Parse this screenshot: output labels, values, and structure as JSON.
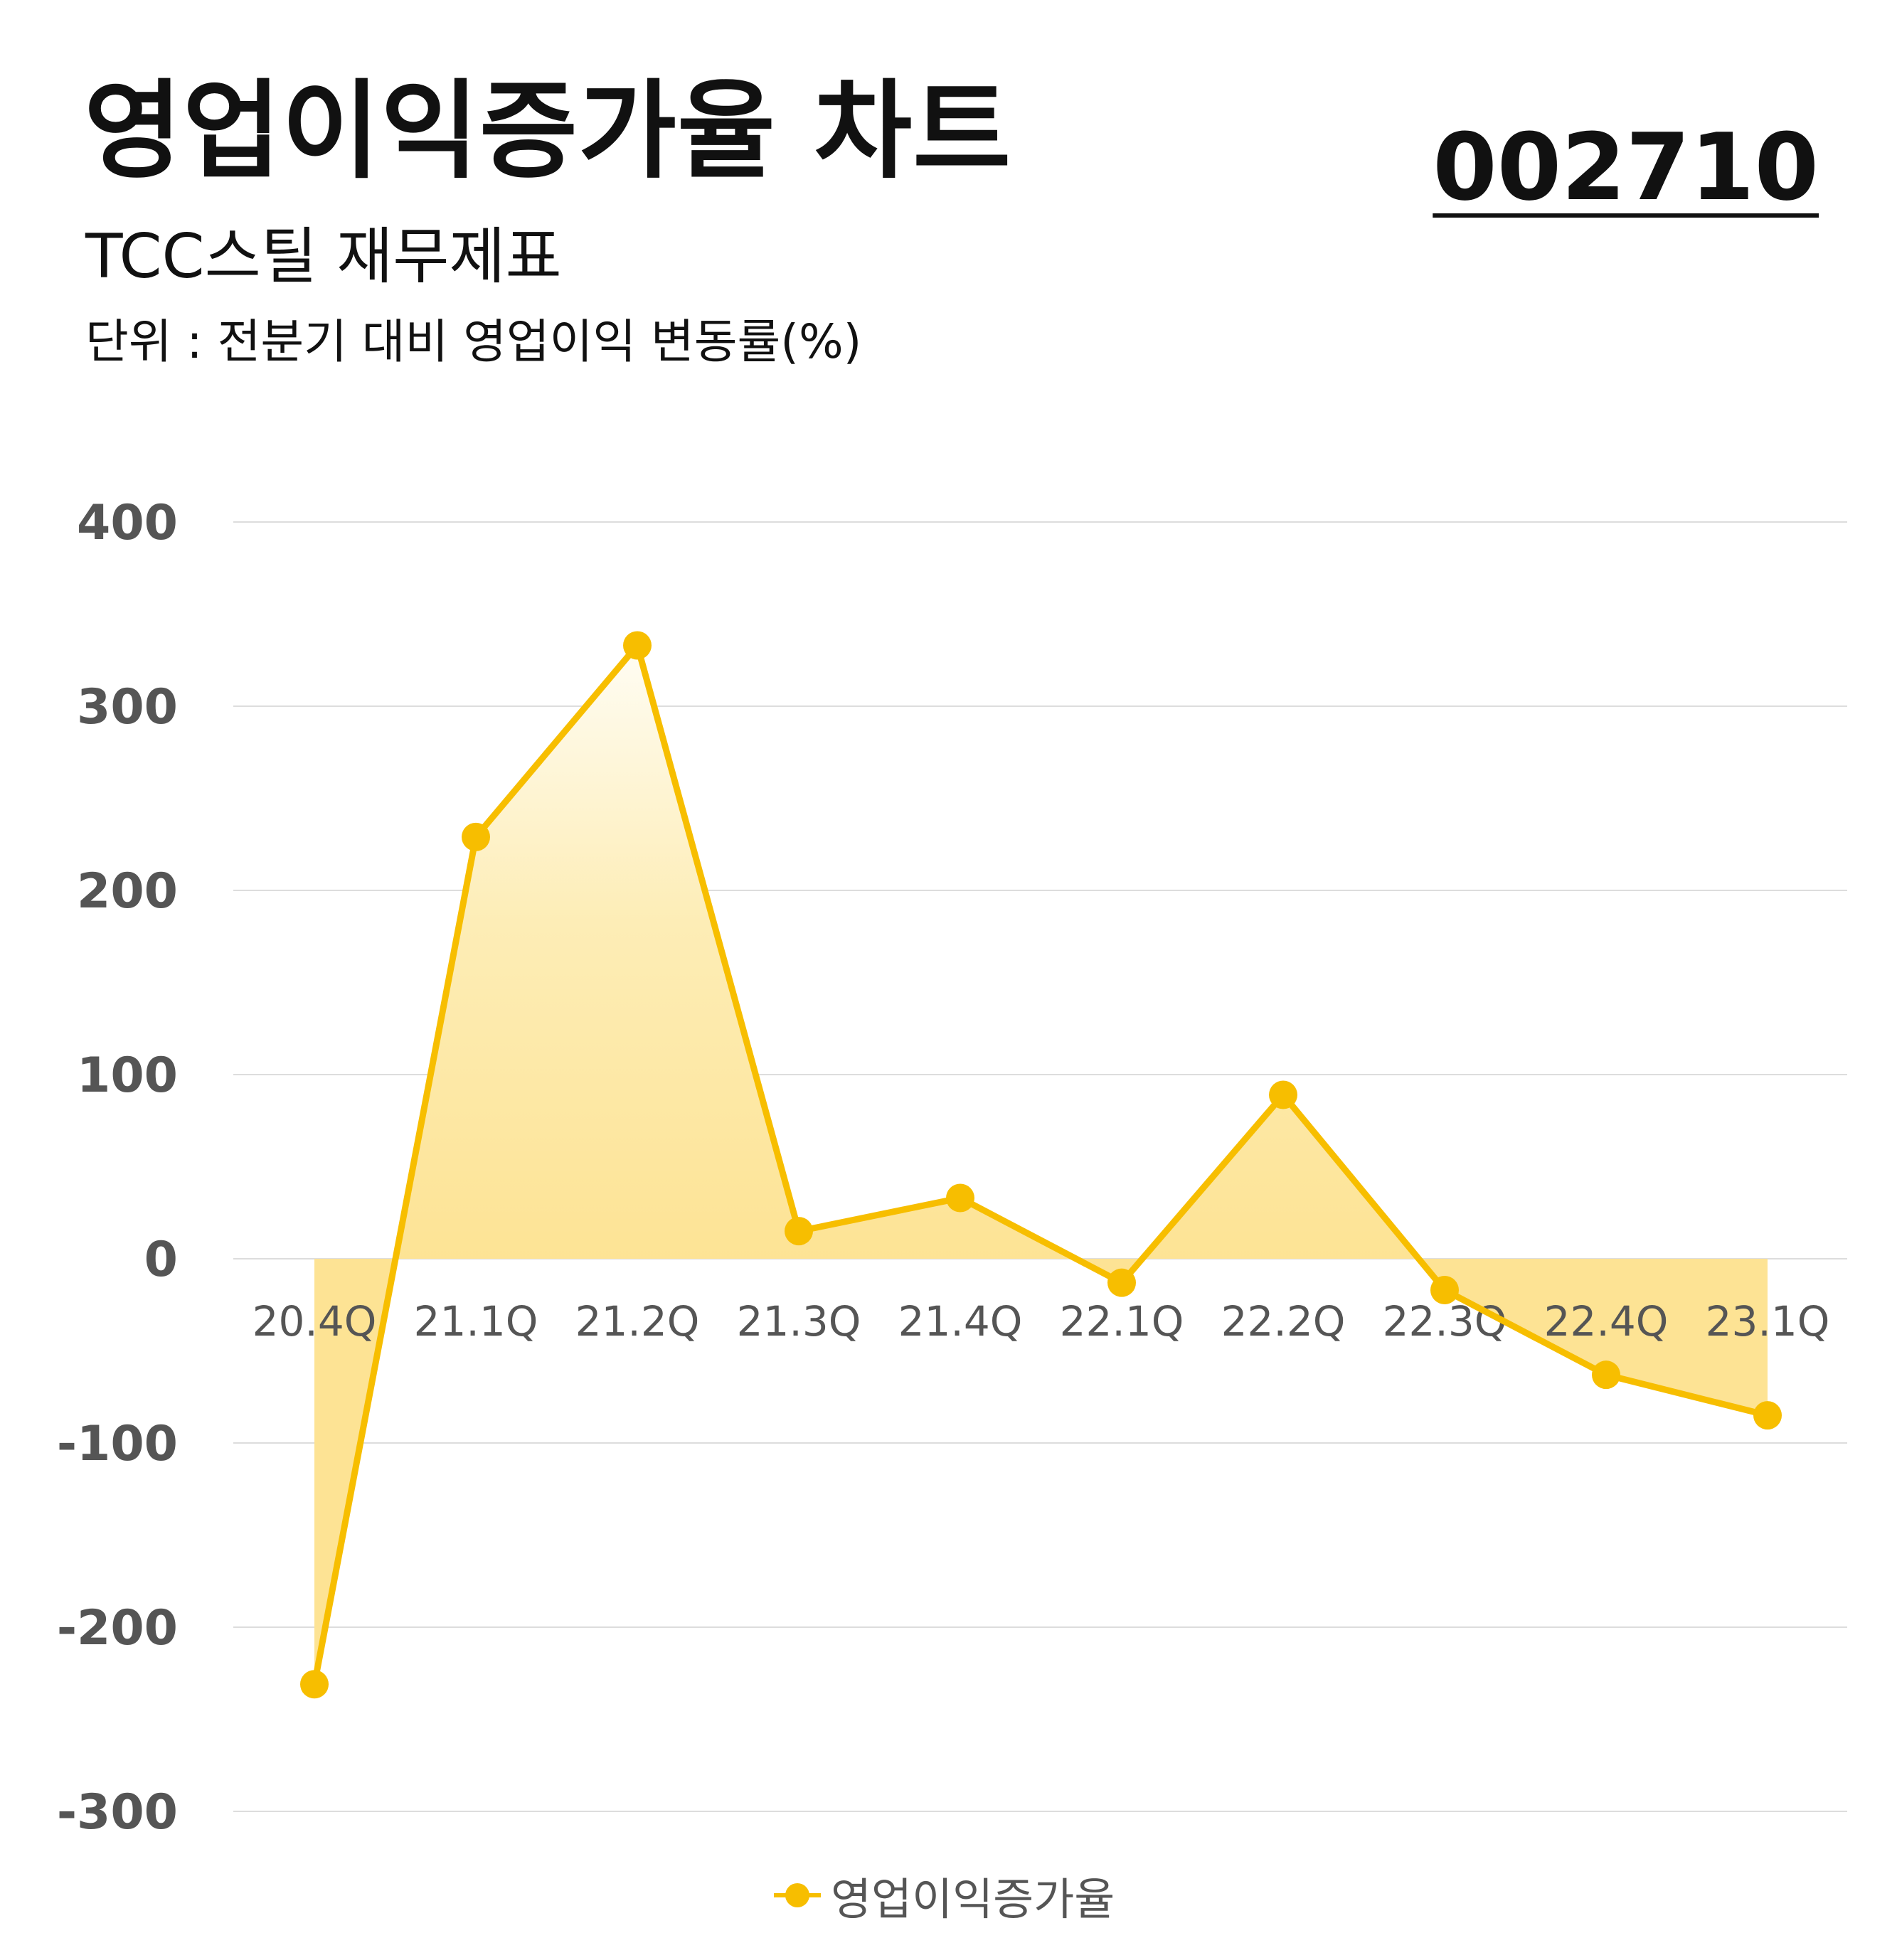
{
  "header": {
    "title": "영업이익증가율 차트",
    "code": "002710",
    "subtitle": "TCC스틸 재무제표",
    "unit": "단위 : 전분기 대비 영업이익 변동률(%)"
  },
  "colors": {
    "line": "#F7BE00",
    "fill": "#FDE7A0",
    "grid": "#DDDDDD",
    "axis_text": "#555555"
  },
  "chart_data": {
    "type": "area",
    "categories": [
      "20.4Q",
      "21.1Q",
      "21.2Q",
      "21.3Q",
      "21.4Q",
      "22.1Q",
      "22.2Q",
      "22.3Q",
      "22.4Q",
      "23.1Q"
    ],
    "series": [
      {
        "name": "영업이익증가율",
        "values": [
          -231,
          229,
          333,
          15,
          33,
          -13,
          89,
          -17,
          -63,
          -85
        ]
      }
    ],
    "ylim": [
      -300,
      400
    ],
    "yticks": [
      400,
      300,
      200,
      100,
      0,
      -100,
      -200,
      -300
    ],
    "grid": true,
    "legend": "bottom"
  }
}
